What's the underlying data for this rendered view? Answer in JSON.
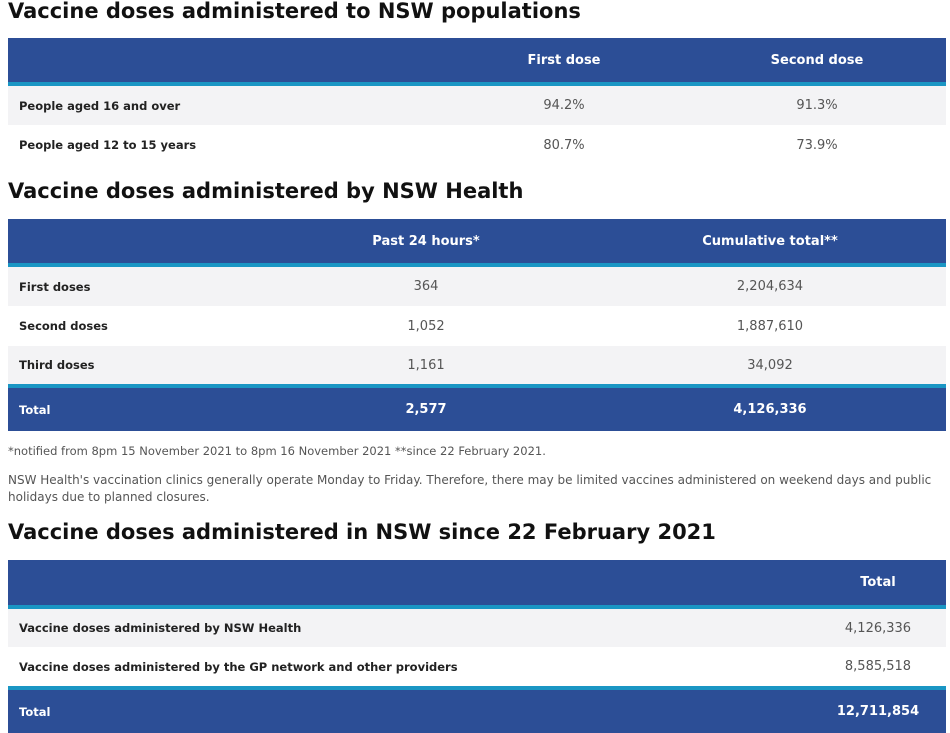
{
  "sections": [
    {
      "title": "Vaccine doses administered to NSW populations",
      "columns": [
        "First dose",
        "Second dose"
      ],
      "rows": [
        [
          "People aged 16 and over",
          "94.2%",
          "91.3%"
        ],
        [
          "People aged 12 to 15 years",
          "80.7%",
          "73.9%"
        ]
      ]
    },
    {
      "title": "Vaccine doses administered by NSW Health",
      "columns": [
        "Past 24 hours*",
        "Cumulative total**"
      ],
      "rows": [
        [
          "First doses",
          "364",
          "2,204,634"
        ],
        [
          "Second doses",
          "1,052",
          "1,887,610"
        ],
        [
          "Third doses",
          "1,161",
          "34,092"
        ]
      ],
      "total": [
        "Total",
        "2,577",
        "4,126,336"
      ],
      "notes": [
        "*notified from 8pm 15 November 2021 to 8pm 16 November 2021 **since 22 February 2021.",
        "NSW Health's vaccination clinics generally operate Monday to Friday. Therefore, there may be limited vaccines administered on weekend days and public holidays due to planned closures."
      ]
    },
    {
      "title": "Vaccine doses administered in NSW since 22 February 2021",
      "columns": [
        "Total"
      ],
      "rows": [
        [
          "Vaccine doses administered by NSW Health",
          "4,126,336"
        ],
        [
          "Vaccine doses administered by the GP network and other providers",
          "8,585,518"
        ]
      ],
      "total": [
        "Total",
        "12,711,854"
      ]
    }
  ]
}
